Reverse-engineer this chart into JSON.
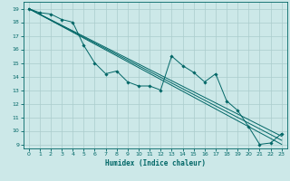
{
  "xlabel": "Humidex (Indice chaleur)",
  "ylabel": "",
  "bg_color": "#cce8e8",
  "grid_color": "#aacccc",
  "line_color": "#006666",
  "xlim": [
    -0.5,
    23.5
  ],
  "ylim": [
    8.7,
    19.5
  ],
  "yticks": [
    9,
    10,
    11,
    12,
    13,
    14,
    15,
    16,
    17,
    18,
    19
  ],
  "xticks": [
    0,
    1,
    2,
    3,
    4,
    5,
    6,
    7,
    8,
    9,
    10,
    11,
    12,
    13,
    14,
    15,
    16,
    17,
    18,
    19,
    20,
    21,
    22,
    23
  ],
  "line1_x": [
    0,
    1,
    2,
    3,
    4,
    5,
    6,
    7,
    8,
    9,
    10,
    11,
    12,
    13,
    14,
    15,
    16,
    17,
    18,
    19,
    20,
    21,
    22,
    23
  ],
  "line1_y": [
    19.0,
    18.7,
    18.6,
    18.2,
    18.0,
    16.3,
    15.0,
    14.2,
    14.4,
    13.6,
    13.3,
    13.3,
    13.0,
    15.5,
    14.8,
    14.3,
    13.6,
    14.2,
    12.2,
    11.5,
    10.3,
    9.0,
    9.1,
    9.8
  ],
  "line2_x": [
    0,
    23
  ],
  "line2_y": [
    19.0,
    9.6
  ],
  "line3_x": [
    0,
    23
  ],
  "line3_y": [
    19.0,
    9.3
  ],
  "line4_x": [
    0,
    23
  ],
  "line4_y": [
    19.0,
    9.0
  ]
}
